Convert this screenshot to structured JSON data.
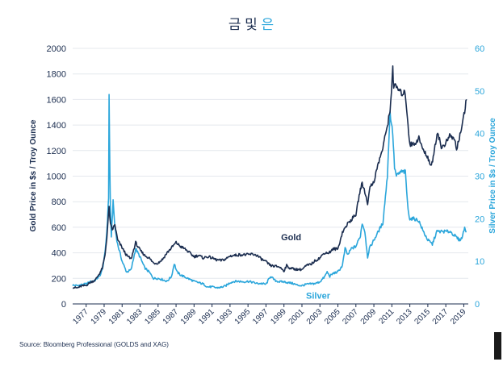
{
  "chart_data": {
    "type": "line",
    "title": "금 및 은",
    "title_gold_part": "금 및 ",
    "title_silver_part": "은",
    "ylabel_left": "Gold Price in $s / Troy Ounce",
    "ylabel_right": "Silver Price in $s / Troy Ounce",
    "ylim_left": [
      0,
      2000
    ],
    "ylim_right": [
      0,
      60
    ],
    "xlim": [
      1976,
      2020
    ],
    "yticks_left": [
      "0",
      "200",
      "400",
      "600",
      "800",
      "1000",
      "1200",
      "1400",
      "1600",
      "1800",
      "2000"
    ],
    "yticks_right": [
      "0",
      "10",
      "20",
      "30",
      "40",
      "50",
      "60"
    ],
    "xticks": [
      "1977",
      "1979",
      "1981",
      "1983",
      "1985",
      "1987",
      "1989",
      "1991",
      "1993",
      "1995",
      "1997",
      "1999",
      "2001",
      "2003",
      "2005",
      "2007",
      "2009",
      "2011",
      "2013",
      "2015",
      "2017",
      "2019"
    ],
    "grid": true,
    "series": [
      {
        "name": "Gold",
        "axis": "left",
        "color": "#1b2d4f",
        "x": [
          1976.0,
          1976.5,
          1977.0,
          1977.5,
          1978.0,
          1978.5,
          1979.0,
          1979.3,
          1979.6,
          1979.8,
          1980.05,
          1980.2,
          1980.4,
          1980.7,
          1981.0,
          1981.5,
          1982.0,
          1982.5,
          1983.0,
          1983.5,
          1984.0,
          1984.5,
          1985.0,
          1985.5,
          1986.0,
          1986.5,
          1987.0,
          1987.5,
          1988.0,
          1988.5,
          1989.0,
          1989.5,
          1990.0,
          1990.5,
          1991.0,
          1991.5,
          1992.0,
          1992.5,
          1993.0,
          1993.5,
          1994.0,
          1994.5,
          1995.0,
          1995.5,
          1996.0,
          1996.5,
          1997.0,
          1997.5,
          1998.0,
          1998.5,
          1999.0,
          1999.5,
          1999.8,
          2000.0,
          2000.5,
          2001.0,
          2001.5,
          2002.0,
          2002.5,
          2003.0,
          2003.5,
          2004.0,
          2004.5,
          2005.0,
          2005.5,
          2006.0,
          2006.5,
          2007.0,
          2007.5,
          2008.0,
          2008.2,
          2008.5,
          2008.8,
          2009.0,
          2009.5,
          2010.0,
          2010.5,
          2011.0,
          2011.3,
          2011.6,
          2011.7,
          2012.0,
          2012.5,
          2013.0,
          2013.3,
          2013.5,
          2014.0,
          2014.5,
          2015.0,
          2015.5,
          2015.9,
          2016.3,
          2016.6,
          2017.0,
          2017.5,
          2018.0,
          2018.5,
          2018.7,
          2019.0,
          2019.3,
          2019.6,
          2019.8
        ],
        "values": [
          130,
          125,
          140,
          145,
          170,
          185,
          240,
          280,
          380,
          520,
          760,
          620,
          580,
          620,
          500,
          440,
          380,
          350,
          480,
          420,
          380,
          360,
          320,
          320,
          350,
          400,
          440,
          480,
          450,
          430,
          400,
          370,
          380,
          360,
          370,
          360,
          345,
          340,
          350,
          375,
          380,
          385,
          385,
          385,
          390,
          380,
          350,
          330,
          300,
          295,
          290,
          260,
          300,
          285,
          275,
          270,
          270,
          300,
          310,
          340,
          360,
          400,
          400,
          430,
          430,
          560,
          620,
          660,
          700,
          900,
          940,
          880,
          780,
          900,
          960,
          1100,
          1220,
          1400,
          1500,
          1850,
          1700,
          1700,
          1650,
          1650,
          1400,
          1250,
          1250,
          1300,
          1200,
          1150,
          1070,
          1240,
          1350,
          1220,
          1260,
          1320,
          1280,
          1210,
          1300,
          1400,
          1500,
          1600
        ]
      },
      {
        "name": "Silver",
        "axis": "right",
        "color": "#2ba6db",
        "x": [
          1976.0,
          1976.5,
          1977.0,
          1977.5,
          1978.0,
          1978.5,
          1979.0,
          1979.3,
          1979.6,
          1979.8,
          1980.0,
          1980.05,
          1980.1,
          1980.2,
          1980.3,
          1980.5,
          1980.7,
          1981.0,
          1981.5,
          1982.0,
          1982.5,
          1983.0,
          1983.5,
          1984.0,
          1984.5,
          1985.0,
          1985.5,
          1986.0,
          1986.5,
          1987.0,
          1987.3,
          1987.6,
          1988.0,
          1988.5,
          1989.0,
          1989.5,
          1990.0,
          1990.5,
          1991.0,
          1991.5,
          1992.0,
          1992.5,
          1993.0,
          1993.5,
          1994.0,
          1994.5,
          1995.0,
          1995.5,
          1996.0,
          1996.5,
          1997.0,
          1997.5,
          1998.0,
          1998.5,
          1999.0,
          1999.5,
          2000.0,
          2000.5,
          2001.0,
          2001.5,
          2002.0,
          2002.5,
          2003.0,
          2003.5,
          2004.0,
          2004.3,
          2004.6,
          2005.0,
          2005.5,
          2006.0,
          2006.3,
          2006.6,
          2007.0,
          2007.5,
          2008.0,
          2008.2,
          2008.5,
          2008.8,
          2009.0,
          2009.5,
          2010.0,
          2010.5,
          2011.0,
          2011.3,
          2011.6,
          2011.8,
          2012.0,
          2012.5,
          2013.0,
          2013.3,
          2013.5,
          2014.0,
          2014.5,
          2015.0,
          2015.5,
          2016.0,
          2016.5,
          2017.0,
          2017.5,
          2018.0,
          2018.5,
          2019.0,
          2019.3,
          2019.6,
          2019.8
        ],
        "values": [
          4.4,
          4.3,
          4.5,
          4.7,
          5.2,
          5.6,
          6.5,
          8.0,
          12.0,
          17.0,
          25.0,
          49.0,
          38.0,
          22.0,
          16.0,
          24.0,
          18.0,
          14.0,
          10.0,
          7.5,
          8.0,
          13.0,
          11.0,
          8.5,
          7.5,
          6.0,
          6.0,
          5.7,
          5.3,
          6.5,
          9.5,
          7.5,
          6.8,
          6.3,
          5.8,
          5.3,
          5.0,
          4.7,
          4.0,
          4.0,
          3.8,
          3.9,
          4.2,
          5.0,
          5.3,
          5.3,
          5.2,
          5.3,
          5.1,
          4.8,
          4.8,
          4.6,
          6.5,
          5.5,
          5.2,
          5.2,
          5.0,
          4.8,
          4.4,
          4.3,
          4.6,
          4.7,
          4.8,
          5.2,
          6.3,
          7.5,
          6.5,
          7.2,
          7.5,
          9.0,
          13.0,
          11.5,
          13.0,
          13.5,
          16.0,
          19.0,
          17.0,
          11.0,
          13.0,
          15.0,
          17.0,
          19.0,
          30.0,
          45.0,
          40.0,
          32.0,
          30.0,
          31.0,
          31.0,
          22.0,
          20.0,
          20.0,
          19.5,
          17.0,
          15.0,
          14.0,
          17.0,
          17.0,
          17.0,
          17.0,
          16.0,
          15.0,
          15.5,
          18.0,
          17.0
        ]
      }
    ],
    "annotations": [
      {
        "text": "Gold",
        "x": 2000.3,
        "y": 500,
        "axis": "left",
        "color": "#1b2d4f"
      },
      {
        "text": "Silver",
        "x": 2003.3,
        "y": 1.2,
        "axis": "right",
        "color": "#2ba6db"
      }
    ]
  },
  "source": "Source: Bloomberg Professional (GOLDS and XAG)"
}
